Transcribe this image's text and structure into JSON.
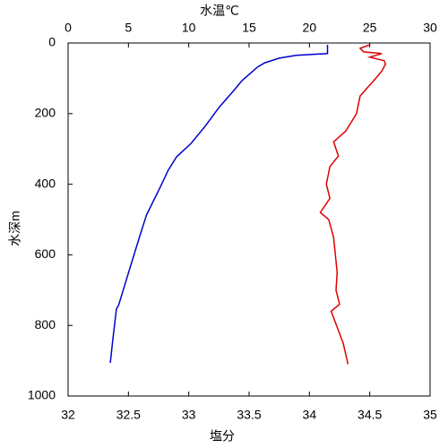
{
  "chart_data": {
    "type": "line",
    "orientation": "vertical-profile",
    "ylabel": "水深m",
    "xlabel": "塩分",
    "x2label": "水温℃",
    "xlabel_color": "#cc0000",
    "x2label_color": "#0000cc",
    "ylim": [
      0,
      1000
    ],
    "yticks": [
      0,
      200,
      400,
      600,
      800,
      1000
    ],
    "y_inverted": true,
    "xlim": [
      32,
      35
    ],
    "xticks": [
      32,
      32.5,
      33,
      33.5,
      34,
      34.5,
      35
    ],
    "x2lim": [
      0,
      30
    ],
    "x2ticks": [
      0,
      5,
      10,
      15,
      20,
      25,
      30
    ],
    "series": [
      {
        "color": "#0000cc",
        "axis": "x2",
        "y": [
          5,
          30,
          35,
          43,
          56,
          68,
          107,
          132,
          183,
          234,
          284,
          322,
          360,
          411,
          487,
          551,
          640,
          741,
          754,
          843,
          906
        ],
        "values": [
          21.5,
          21.5,
          18.9,
          17.5,
          16.3,
          15.7,
          14.4,
          13.8,
          12.5,
          11.4,
          10.2,
          9.0,
          8.3,
          7.6,
          6.5,
          5.9,
          5.1,
          4.2,
          4.0,
          3.7,
          3.5
        ]
      },
      {
        "color": "#dd0000",
        "axis": "x",
        "y": [
          5,
          15,
          25,
          30,
          40,
          50,
          60,
          80,
          100,
          150,
          200,
          250,
          280,
          320,
          350,
          400,
          440,
          480,
          500,
          550,
          650,
          700,
          740,
          760,
          850,
          910
        ],
        "values": [
          34.5,
          34.42,
          34.45,
          34.6,
          34.5,
          34.62,
          34.63,
          34.6,
          34.55,
          34.42,
          34.39,
          34.3,
          34.2,
          34.24,
          34.17,
          34.14,
          34.17,
          34.09,
          34.16,
          34.2,
          34.23,
          34.22,
          34.25,
          34.18,
          34.28,
          34.32
        ]
      }
    ]
  }
}
